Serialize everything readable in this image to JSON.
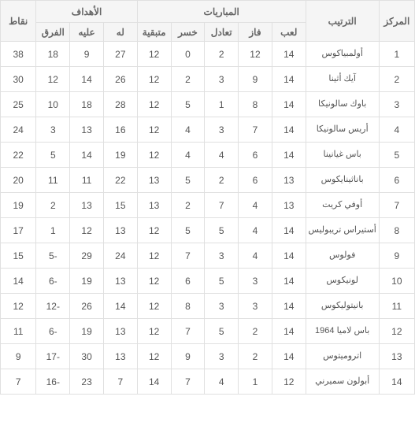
{
  "table": {
    "type": "table",
    "header_groups": {
      "pos": "المركز",
      "team": "الترتيب",
      "matches": "المباريات",
      "goals": "الأهداف",
      "pts": "نقاط"
    },
    "sub_headers": {
      "played": "لعب",
      "won": "فاز",
      "drawn": "تعادل",
      "lost": "خسر",
      "remaining": "متبقية",
      "for": "له",
      "against": "عليه",
      "diff": "الفرق"
    },
    "rows": [
      {
        "pos": "1",
        "team": "أولمبياكوس",
        "played": "14",
        "won": "12",
        "drawn": "2",
        "lost": "0",
        "remaining": "12",
        "for": "27",
        "against": "9",
        "diff": "18",
        "pts": "38"
      },
      {
        "pos": "2",
        "team": "آيك أثينا",
        "played": "14",
        "won": "9",
        "drawn": "3",
        "lost": "2",
        "remaining": "12",
        "for": "26",
        "against": "14",
        "diff": "12",
        "pts": "30"
      },
      {
        "pos": "3",
        "team": "باوك سالونيكا",
        "played": "14",
        "won": "8",
        "drawn": "1",
        "lost": "5",
        "remaining": "12",
        "for": "28",
        "against": "18",
        "diff": "10",
        "pts": "25"
      },
      {
        "pos": "4",
        "team": "أريس سالونيكا",
        "played": "14",
        "won": "7",
        "drawn": "3",
        "lost": "4",
        "remaining": "12",
        "for": "16",
        "against": "13",
        "diff": "3",
        "pts": "24"
      },
      {
        "pos": "5",
        "team": "باس غيانينا",
        "played": "14",
        "won": "6",
        "drawn": "4",
        "lost": "4",
        "remaining": "12",
        "for": "19",
        "against": "14",
        "diff": "5",
        "pts": "22"
      },
      {
        "pos": "6",
        "team": "باناثينايكوس",
        "played": "13",
        "won": "6",
        "drawn": "2",
        "lost": "5",
        "remaining": "13",
        "for": "22",
        "against": "11",
        "diff": "11",
        "pts": "20"
      },
      {
        "pos": "7",
        "team": "أوفي كريت",
        "played": "13",
        "won": "4",
        "drawn": "7",
        "lost": "2",
        "remaining": "13",
        "for": "15",
        "against": "13",
        "diff": "2",
        "pts": "19"
      },
      {
        "pos": "8",
        "team": "أستيراس تريبوليس",
        "played": "14",
        "won": "4",
        "drawn": "5",
        "lost": "5",
        "remaining": "12",
        "for": "13",
        "against": "12",
        "diff": "1",
        "pts": "17"
      },
      {
        "pos": "9",
        "team": "فولوس",
        "played": "14",
        "won": "4",
        "drawn": "3",
        "lost": "7",
        "remaining": "12",
        "for": "24",
        "against": "29",
        "diff": "-5",
        "pts": "15"
      },
      {
        "pos": "10",
        "team": "لونيكوس",
        "played": "14",
        "won": "3",
        "drawn": "5",
        "lost": "6",
        "remaining": "12",
        "for": "13",
        "against": "19",
        "diff": "-6",
        "pts": "14"
      },
      {
        "pos": "11",
        "team": "بانيتوليكوس",
        "played": "14",
        "won": "3",
        "drawn": "3",
        "lost": "8",
        "remaining": "12",
        "for": "14",
        "against": "26",
        "diff": "-12",
        "pts": "12"
      },
      {
        "pos": "12",
        "team": "باس لاميا 1964",
        "played": "14",
        "won": "2",
        "drawn": "5",
        "lost": "7",
        "remaining": "12",
        "for": "13",
        "against": "19",
        "diff": "-6",
        "pts": "11"
      },
      {
        "pos": "13",
        "team": "اتروميتوس",
        "played": "14",
        "won": "2",
        "drawn": "3",
        "lost": "9",
        "remaining": "12",
        "for": "13",
        "against": "30",
        "diff": "-17",
        "pts": "9"
      },
      {
        "pos": "14",
        "team": "أبولون سميرني",
        "played": "12",
        "won": "1",
        "drawn": "4",
        "lost": "7",
        "remaining": "14",
        "for": "7",
        "against": "23",
        "diff": "-16",
        "pts": "7"
      }
    ],
    "colors": {
      "border": "#e0e0e0",
      "header_bg": "#f5f5f5",
      "row_bg": "#ffffff",
      "text": "#555555"
    }
  }
}
